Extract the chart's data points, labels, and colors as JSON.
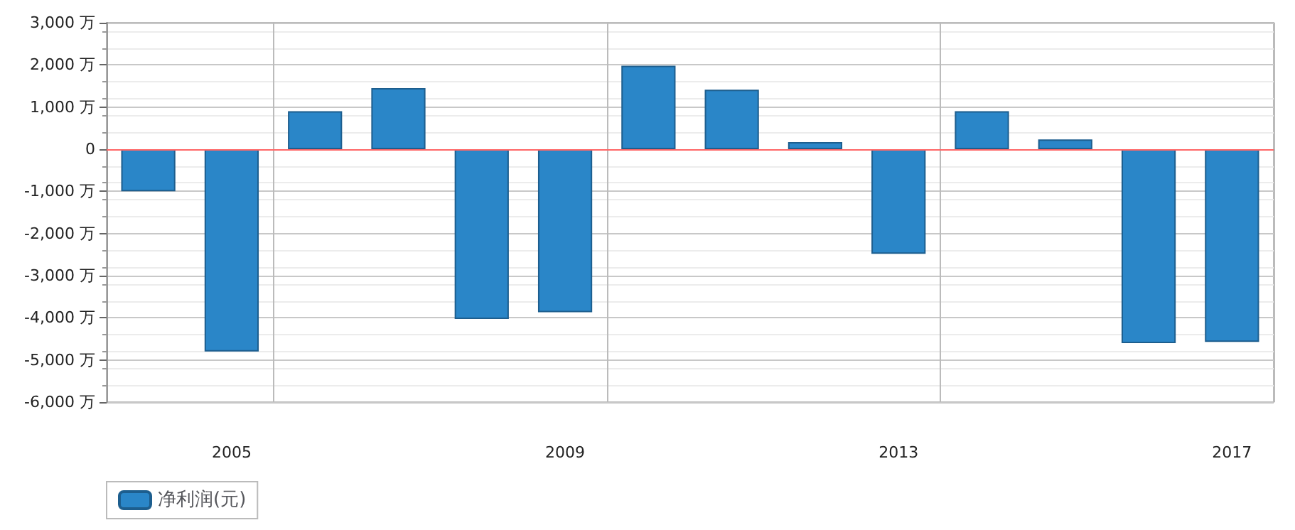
{
  "chart_data": {
    "type": "bar",
    "categories": [
      null,
      "2005",
      null,
      null,
      null,
      "2009",
      null,
      null,
      null,
      "2013",
      null,
      null,
      null,
      "2017"
    ],
    "series": [
      {
        "name": "净利润(元)",
        "color": "#2a86c8",
        "values": [
          -1000,
          -4800,
          900,
          1450,
          -4030,
          -3870,
          1980,
          1410,
          170,
          -2480,
          900,
          230,
          -4600,
          -4570
        ]
      }
    ],
    "ylim": [
      -6000,
      3000
    ],
    "yticks": [
      {
        "value": -6000,
        "label": "-6,000 万"
      },
      {
        "value": -5000,
        "label": "-5,000 万"
      },
      {
        "value": -4000,
        "label": "-4,000 万"
      },
      {
        "value": -3000,
        "label": "-3,000 万"
      },
      {
        "value": -2000,
        "label": "-2,000 万"
      },
      {
        "value": -1000,
        "label": "-1,000 万"
      },
      0,
      {
        "value": 1000,
        "label": "1,000 万"
      },
      {
        "value": 2000,
        "label": "2,000 万"
      },
      {
        "value": 3000,
        "label": "3,000 万"
      }
    ],
    "ref_lines": [
      {
        "axis": "y",
        "value": 0,
        "color": "#ff6666"
      }
    ],
    "grid": true,
    "legend": "bottom left"
  }
}
